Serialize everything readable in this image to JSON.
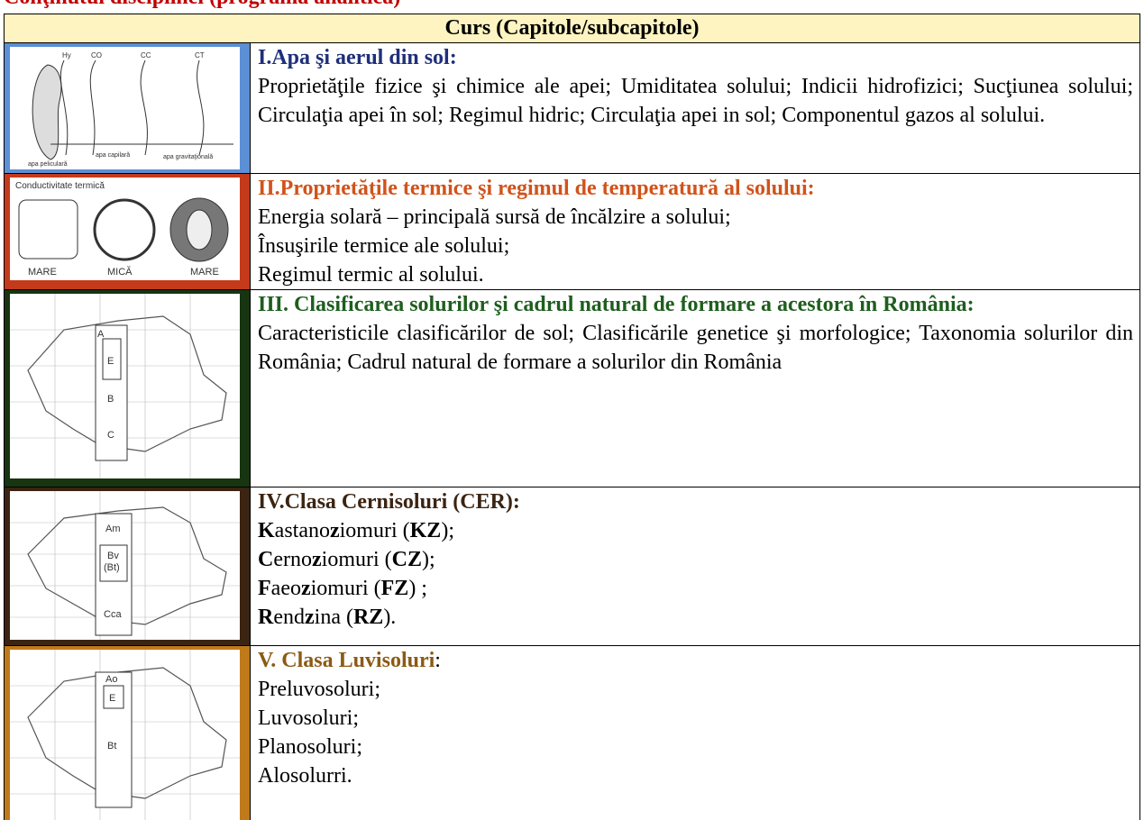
{
  "heading": "Conţinutul disciplinei (programa analitică)",
  "table": {
    "header": "Curs (Capitole/subcapitole)",
    "rows": [
      {
        "image_labels": [
          "Hy",
          "CO",
          "CC",
          "CT",
          "apa peliculară",
          "apa capilară",
          "apa gravitaţională"
        ],
        "title": "I.Apa şi aerul din sol:",
        "body": [
          "Proprietăţile fizice şi chimice ale apei; Umiditatea solului; Indicii hidrofizici; Sucţiunea solului; Circulaţia apei în sol; Regimul hidric; Circulaţia apei in sol;  Componentul gazos al solului."
        ]
      },
      {
        "image_labels": [
          "Conductivitate termică",
          "MARE",
          "MICĂ",
          "MARE"
        ],
        "title": "II.Proprietăţile termice şi regimul de temperatură al solului:",
        "body": [
          "Energia solară – principală sursă de încălzire a solului;",
          "Însuşirile termice ale solului;",
          "Regimul termic al solului."
        ]
      },
      {
        "image_labels": [
          "A",
          "E",
          "B",
          "C"
        ],
        "title": "III. Clasificarea solurilor şi cadrul natural de formare a acestora în România:",
        "body": [
          "Caracteristicile clasificărilor de sol; Clasificările genetice şi morfologice; Taxonomia solurilor din România; Cadrul natural de formare a solurilor din România"
        ]
      },
      {
        "image_labels": [
          "Am",
          "Bv",
          "(Bt)",
          "Cca"
        ],
        "title": "IV.Clasa Cernisoluri (CER):",
        "lines": [
          [
            {
              "bold": "K"
            },
            {
              "text": "astano"
            },
            {
              "bold": "z"
            },
            {
              "text": "iomuri ("
            },
            {
              "bold": "KZ"
            },
            {
              "text": ");"
            }
          ],
          [
            {
              "bold": "C"
            },
            {
              "text": "erno"
            },
            {
              "bold": "z"
            },
            {
              "text": "iomuri ("
            },
            {
              "bold": "CZ"
            },
            {
              "text": ");"
            }
          ],
          [
            {
              "bold": "F"
            },
            {
              "text": "aeo"
            },
            {
              "bold": "z"
            },
            {
              "text": "iomuri ("
            },
            {
              "bold": "FZ"
            },
            {
              "text": ") ;"
            }
          ],
          [
            {
              "bold": "R"
            },
            {
              "text": "end"
            },
            {
              "bold": "z"
            },
            {
              "text": "ina ("
            },
            {
              "bold": "RZ"
            },
            {
              "text": ")."
            }
          ]
        ]
      },
      {
        "image_labels": [
          "Ao",
          "E",
          "Bt"
        ],
        "title": "V. Clasa Luvisoluri",
        "title_suffix": ":",
        "body": [
          "Preluvosoluri;",
          "Luvosoluri;",
          "Planosoluri;",
          "Alosolurri."
        ]
      }
    ]
  }
}
